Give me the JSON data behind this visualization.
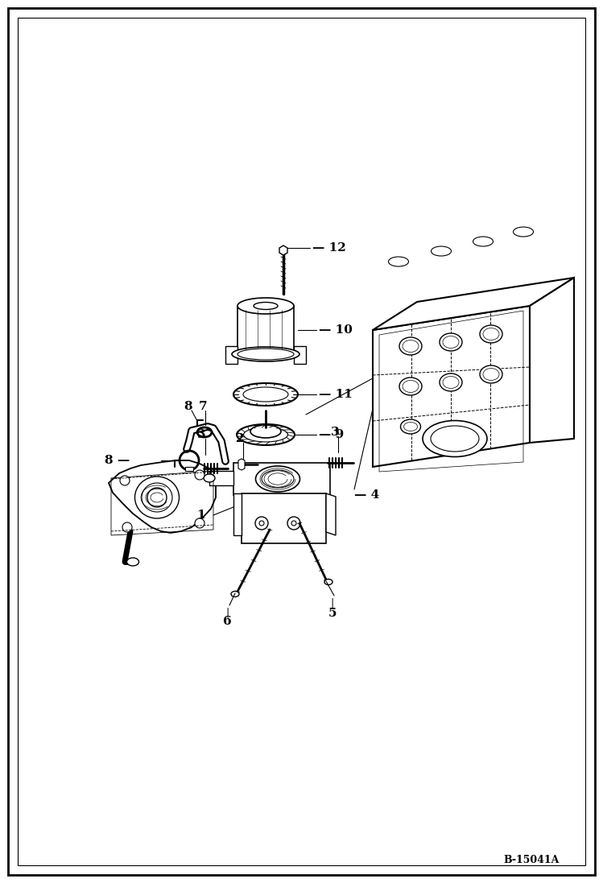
{
  "bg_color": "#ffffff",
  "border_color": "#000000",
  "line_color": "#000000",
  "figure_width": 7.49,
  "figure_height": 10.97,
  "dpi": 100,
  "watermark": "B-15041A"
}
